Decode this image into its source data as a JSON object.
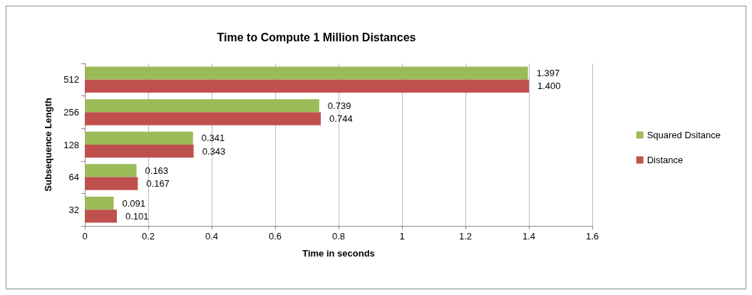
{
  "chart_data": {
    "type": "bar",
    "orientation": "horizontal",
    "title": "Time to Compute 1 Million Distances",
    "xlabel": "Time in seconds",
    "ylabel": "Subsequence Length",
    "categories": [
      "512",
      "256",
      "128",
      "64",
      "32"
    ],
    "series": [
      {
        "name": "Squared Dsitance",
        "color": "#9bbb59",
        "values": [
          1.397,
          0.739,
          0.341,
          0.163,
          0.091
        ],
        "value_labels": [
          "1.397",
          "0.739",
          "0.341",
          "0.163",
          "0.091"
        ]
      },
      {
        "name": "Distance",
        "color": "#c0504d",
        "values": [
          1.4,
          0.744,
          0.343,
          0.167,
          0.101
        ],
        "value_labels": [
          "1.400",
          "0.744",
          "0.343",
          "0.167",
          "0.101"
        ]
      }
    ],
    "xlim": [
      0,
      1.6
    ],
    "xticks": [
      0,
      0.2,
      0.4,
      0.6,
      0.8,
      1,
      1.2,
      1.4,
      1.6
    ],
    "grid": "x",
    "legend": "right"
  }
}
